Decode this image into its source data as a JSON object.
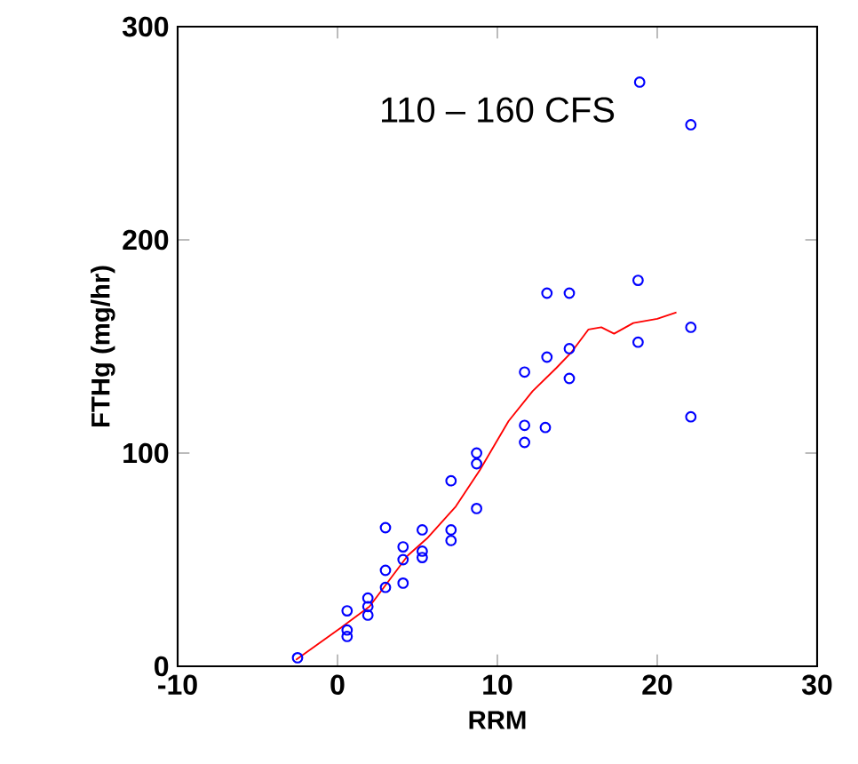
{
  "chart_data": {
    "type": "scatter",
    "title": "110 – 160 CFS",
    "xlabel": "RRM",
    "ylabel": "FTHg (mg/hr)",
    "xlim": [
      -10,
      30
    ],
    "xticks": [
      -10,
      0,
      10,
      20,
      30
    ],
    "ylim": [
      0,
      300
    ],
    "yticks": [
      0,
      100,
      200,
      300
    ],
    "series": [
      {
        "marker": "circle",
        "color": "#0000ff",
        "x": [
          -2.5,
          0.6,
          0.6,
          0.6,
          1.9,
          1.9,
          1.9,
          3.0,
          3.0,
          3.0,
          4.1,
          4.1,
          4.1,
          5.3,
          5.3,
          5.3,
          7.1,
          7.1,
          7.1,
          8.7,
          8.7,
          8.7,
          11.7,
          11.7,
          11.7,
          13.0,
          13.1,
          13.1,
          14.5,
          14.5,
          14.5,
          18.8,
          18.8,
          18.9,
          22.1,
          22.1,
          22.1
        ],
        "values": [
          4,
          26,
          17,
          14,
          32,
          28,
          24,
          65,
          45,
          37,
          56,
          50,
          39,
          64,
          54,
          51,
          87,
          64,
          59,
          74,
          100,
          95,
          113,
          105,
          138,
          112,
          175,
          145,
          175,
          149,
          135,
          181,
          152,
          274,
          159,
          117,
          254
        ]
      },
      {
        "type": "line",
        "marker": "none",
        "color": "#ff0000",
        "x": [
          -2.6,
          0.2,
          2.0,
          4.4,
          5.6,
          7.4,
          8.9,
          10.7,
          12.2,
          13.7,
          14.6,
          15.7,
          16.5,
          17.3,
          18.5,
          20.0,
          21.2
        ],
        "values": [
          3,
          18,
          28,
          52,
          60,
          75,
          92,
          115,
          129,
          140,
          147,
          158,
          159,
          156,
          161,
          163,
          166
        ]
      }
    ]
  }
}
